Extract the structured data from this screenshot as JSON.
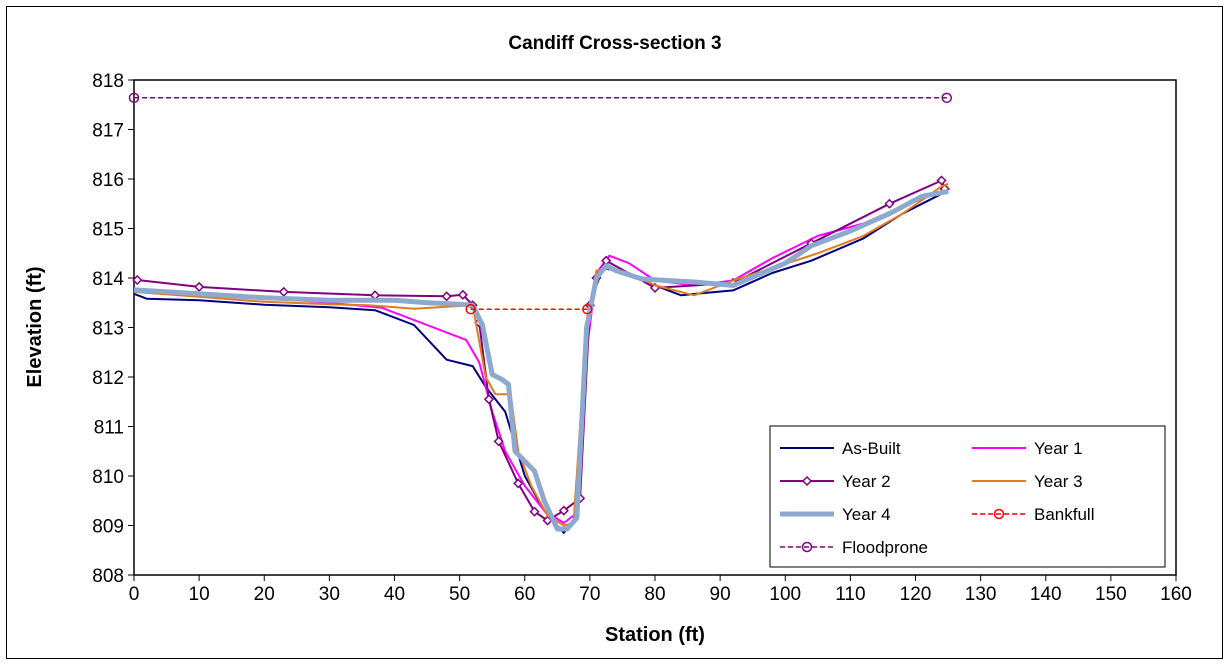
{
  "chart_data": {
    "type": "line",
    "title": "Candiff Cross-section 3",
    "xlabel": "Station (ft)",
    "ylabel": "Elevation (ft)",
    "xlim": [
      0,
      160
    ],
    "ylim": [
      808,
      818
    ],
    "xticks": [
      0,
      10,
      20,
      30,
      40,
      50,
      60,
      70,
      80,
      90,
      100,
      110,
      120,
      130,
      140,
      150,
      160
    ],
    "yticks": [
      808,
      809,
      810,
      811,
      812,
      813,
      814,
      815,
      816,
      817,
      818
    ],
    "grid": false,
    "legend_position": "bottom-right",
    "series": [
      {
        "name": "As-Built",
        "color": "#000080",
        "width": 2,
        "dash": "",
        "marker": "none",
        "x": [
          0,
          2,
          10,
          20,
          30,
          37,
          43,
          48,
          52,
          54,
          57,
          60,
          63,
          66,
          68,
          70,
          72,
          76,
          80,
          84,
          88,
          92,
          98,
          104,
          112,
          118,
          124,
          125
        ],
        "y": [
          813.68,
          813.58,
          813.55,
          813.46,
          813.41,
          813.35,
          813.05,
          812.35,
          812.22,
          811.8,
          811.3,
          810.0,
          809.3,
          808.85,
          809.2,
          813.5,
          814.2,
          814.1,
          813.85,
          813.65,
          813.7,
          813.75,
          814.1,
          814.35,
          814.8,
          815.3,
          815.7,
          815.75
        ]
      },
      {
        "name": "Year 1",
        "color": "#ff00ff",
        "width": 2,
        "dash": "",
        "marker": "none",
        "x": [
          0,
          10,
          20,
          30,
          38,
          45,
          51,
          53,
          55,
          57,
          60,
          63,
          66,
          68,
          69.5,
          71,
          73,
          76,
          80,
          86,
          92,
          98,
          105,
          112,
          118,
          124,
          125
        ],
        "y": [
          813.75,
          813.7,
          813.6,
          813.5,
          813.4,
          813.05,
          812.75,
          812.3,
          811.3,
          810.5,
          809.8,
          809.3,
          809.05,
          809.25,
          812.5,
          814.1,
          814.45,
          814.3,
          813.95,
          813.85,
          813.95,
          814.4,
          814.85,
          815.1,
          815.45,
          815.75,
          815.8
        ]
      },
      {
        "name": "Year 2",
        "color": "#800080",
        "width": 2,
        "dash": "",
        "marker": "diamond",
        "x": [
          0.5,
          10,
          23,
          37,
          48,
          50.5,
          52,
          53,
          54.5,
          56,
          59,
          61.5,
          63.5,
          66,
          68.5,
          70,
          71,
          72.5,
          80,
          92,
          104,
          116,
          124,
          124.5
        ],
        "y": [
          813.96,
          813.82,
          813.72,
          813.65,
          813.63,
          813.66,
          813.45,
          813.1,
          811.55,
          810.7,
          809.85,
          809.28,
          809.1,
          809.3,
          809.55,
          813.45,
          814.0,
          814.35,
          813.8,
          813.9,
          814.7,
          815.5,
          815.97,
          815.8
        ]
      },
      {
        "name": "Year 3",
        "color": "#e07b22",
        "width": 2,
        "dash": "",
        "marker": "none",
        "x": [
          0,
          10,
          20,
          30,
          36,
          43,
          48,
          52,
          54,
          55.5,
          57.5,
          58,
          59,
          61,
          63.5,
          66,
          67.5,
          69.5,
          71,
          73,
          76,
          80,
          86,
          92,
          98,
          105,
          112,
          118,
          124,
          125
        ],
        "y": [
          813.72,
          813.62,
          813.52,
          813.47,
          813.45,
          813.38,
          813.42,
          813.45,
          812.0,
          811.65,
          811.65,
          811.5,
          810.5,
          809.8,
          809.2,
          809.0,
          809.05,
          813.0,
          814.15,
          814.2,
          814.1,
          813.85,
          813.65,
          813.95,
          814.2,
          814.5,
          814.85,
          815.3,
          815.85,
          815.9
        ]
      },
      {
        "name": "Year 4",
        "color": "#8ea9cf",
        "width": 5,
        "dash": "",
        "marker": "none",
        "x": [
          0,
          10,
          20,
          30,
          40,
          45,
          50,
          52,
          53.5,
          55,
          56.5,
          57.5,
          58.5,
          60,
          61.5,
          63,
          65,
          66.5,
          68,
          69.5,
          71,
          72.5,
          74,
          78,
          86,
          92,
          100,
          104,
          110,
          116,
          121,
          125
        ],
        "y": [
          813.76,
          813.68,
          813.6,
          813.55,
          813.55,
          813.5,
          813.47,
          813.45,
          813.05,
          812.05,
          811.95,
          811.85,
          810.5,
          810.3,
          810.1,
          809.5,
          808.93,
          808.93,
          809.15,
          813.0,
          814.0,
          814.25,
          814.15,
          813.98,
          813.92,
          813.85,
          814.3,
          814.65,
          814.95,
          815.3,
          815.65,
          815.75
        ]
      },
      {
        "name": "Bankfull",
        "color": "#ff0000",
        "width": 1.5,
        "dash": "5,3",
        "marker": "circle",
        "x": [
          51.7,
          69.6
        ],
        "y": [
          813.37,
          813.37
        ]
      },
      {
        "name": "Floodprone",
        "color": "#800080",
        "width": 1.5,
        "dash": "5,3",
        "marker": "circle",
        "x": [
          0,
          124.8
        ],
        "y": [
          817.64,
          817.64
        ]
      }
    ]
  }
}
